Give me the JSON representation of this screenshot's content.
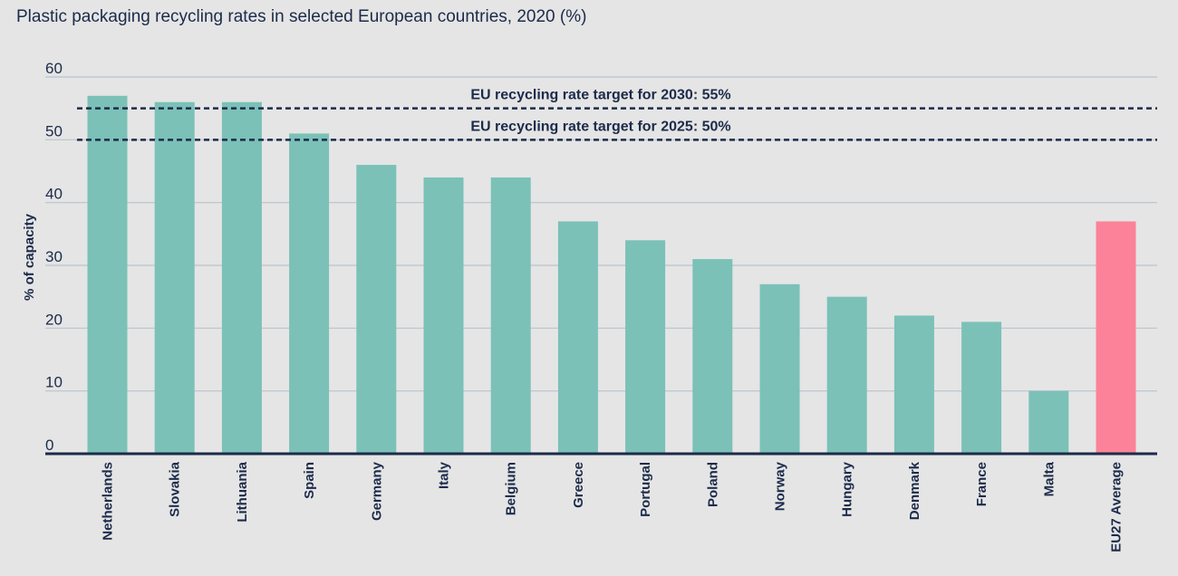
{
  "chart_data": {
    "type": "bar",
    "title": "Plastic packaging recycling rates in selected European countries, 2020 (%)",
    "ylabel": "% of capacity",
    "xlabel": "",
    "ylim": [
      0,
      60
    ],
    "yticks": [
      0,
      10,
      20,
      30,
      40,
      50,
      60
    ],
    "grid": true,
    "categories": [
      "Netherlands",
      "Slovakia",
      "Lithuania",
      "Spain",
      "Germany",
      "Italy",
      "Belgium",
      "Greece",
      "Portugal",
      "Poland",
      "Norway",
      "Hungary",
      "Denmark",
      "France",
      "Malta",
      "EU27 Average"
    ],
    "values": [
      57,
      56,
      56,
      51,
      46,
      44,
      44,
      37,
      34,
      31,
      27,
      25,
      22,
      21,
      10,
      37
    ],
    "highlight_category": "EU27 Average",
    "targets": [
      {
        "value": 55,
        "label": "EU recycling rate target for 2030: 55%"
      },
      {
        "value": 50,
        "label": "EU recycling rate target for 2025: 50%"
      }
    ]
  },
  "colors": {
    "bar": "#7bc1b7",
    "highlight_bar": "#fb8298",
    "axis": "#1c2b4a",
    "grid": "#b9c3cc",
    "background": "#e5e5e5"
  }
}
